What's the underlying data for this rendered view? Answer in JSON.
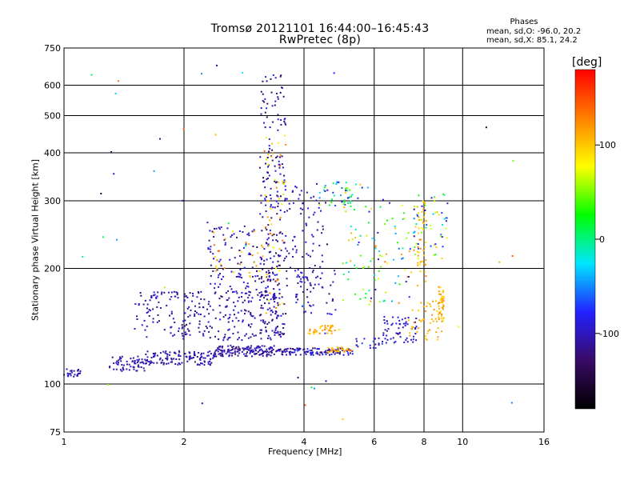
{
  "header": {
    "title_line1": "Tromsø 20121101 16:44:00–16:45:43",
    "title_line2": "RwPretec (8p)"
  },
  "phases_box": {
    "title": "Phases",
    "o_mode": "mean, sd,O: -96.0, 20.2",
    "x_mode": "mean, sd,X: 85.1, 24.2"
  },
  "colorbar": {
    "unit": "[deg]",
    "ticks": [
      {
        "value": 100,
        "label": "100"
      },
      {
        "value": 0,
        "label": "0"
      },
      {
        "value": -100,
        "label": "-100"
      }
    ],
    "range": [
      -180,
      180
    ],
    "colors": [
      "#000000",
      "#3a0a66",
      "#2222ff",
      "#00e6ff",
      "#00ff00",
      "#ffff00",
      "#ff8000",
      "#ff0000"
    ]
  },
  "chart_data": {
    "type": "scatter",
    "xlabel": "Frequency [MHz]",
    "ylabel": "Stationary phase Virtual Height [km]",
    "xscale": "log",
    "yscale": "log",
    "xlim": [
      1,
      16
    ],
    "ylim": [
      75,
      750
    ],
    "xticks": [
      1,
      2,
      4,
      6,
      8,
      10,
      16
    ],
    "xtick_labels": [
      "1",
      "2",
      "4",
      "6",
      "8",
      "10",
      "16"
    ],
    "yticks": [
      75,
      100,
      200,
      300,
      400,
      500,
      600,
      750
    ],
    "ytick_labels": [
      "75",
      "100",
      "200",
      "300",
      "400",
      "500",
      "600",
      "750"
    ],
    "grid": true,
    "clusters": [
      {
        "x": [
          1.0,
          1.1
        ],
        "y": [
          104,
          110
        ],
        "n": 25,
        "phase": [
          -110,
          -90
        ]
      },
      {
        "x": [
          1.3,
          1.6
        ],
        "y": [
          108,
          118
        ],
        "n": 60,
        "phase": [
          -120,
          -90
        ]
      },
      {
        "x": [
          1.6,
          2.4
        ],
        "y": [
          112,
          122
        ],
        "n": 130,
        "phase": [
          -120,
          -90
        ]
      },
      {
        "x": [
          2.4,
          3.4
        ],
        "y": [
          118,
          126
        ],
        "n": 140,
        "phase": [
          -125,
          -90
        ]
      },
      {
        "x": [
          3.4,
          5.3
        ],
        "y": [
          119,
          124
        ],
        "n": 130,
        "phase": [
          -140,
          -70
        ]
      },
      {
        "x": [
          4.6,
          5.3
        ],
        "y": [
          121,
          125
        ],
        "n": 30,
        "phase": [
          80,
          140
        ]
      },
      {
        "x": [
          5.3,
          6.3
        ],
        "y": [
          124,
          132
        ],
        "n": 20,
        "phase": [
          -110,
          -60
        ]
      },
      {
        "x": [
          6.3,
          7.7
        ],
        "y": [
          128,
          150
        ],
        "n": 60,
        "phase": [
          -110,
          -80
        ]
      },
      {
        "x": [
          7.3,
          8.9
        ],
        "y": [
          130,
          165
        ],
        "n": 50,
        "phase": [
          90,
          130
        ]
      },
      {
        "x": [
          8.7,
          9.0
        ],
        "y": [
          145,
          180
        ],
        "n": 40,
        "phase": [
          90,
          130
        ]
      },
      {
        "x": [
          4.1,
          4.9
        ],
        "y": [
          135,
          142
        ],
        "n": 35,
        "phase": [
          90,
          130
        ]
      },
      {
        "x": [
          1.5,
          3.5
        ],
        "y": [
          130,
          175
        ],
        "n": 280,
        "phase": [
          -125,
          -85
        ]
      },
      {
        "x": [
          2.3,
          3.4
        ],
        "y": [
          170,
          260
        ],
        "n": 120,
        "phase": [
          -125,
          -80
        ]
      },
      {
        "x": [
          2.3,
          3.2
        ],
        "y": [
          190,
          250
        ],
        "n": 30,
        "phase": [
          80,
          140
        ]
      },
      {
        "x": [
          3.1,
          3.6
        ],
        "y": [
          130,
          640
        ],
        "n": 230,
        "phase": [
          -140,
          -80
        ]
      },
      {
        "x": [
          3.2,
          3.6
        ],
        "y": [
          150,
          450
        ],
        "n": 50,
        "phase": [
          60,
          140
        ]
      },
      {
        "x": [
          3.6,
          4.5
        ],
        "y": [
          180,
          330
        ],
        "n": 80,
        "phase": [
          -120,
          -80
        ]
      },
      {
        "x": [
          4.3,
          5.3
        ],
        "y": [
          290,
          340
        ],
        "n": 40,
        "phase": [
          -120,
          60
        ]
      },
      {
        "x": [
          3.8,
          4.8
        ],
        "y": [
          150,
          200
        ],
        "n": 50,
        "phase": [
          -120,
          -80
        ]
      },
      {
        "x": [
          5.0,
          6.0
        ],
        "y": [
          160,
          340
        ],
        "n": 50,
        "phase": [
          -100,
          120
        ]
      },
      {
        "x": [
          6.0,
          7.6
        ],
        "y": [
          160,
          310
        ],
        "n": 60,
        "phase": [
          -110,
          130
        ]
      },
      {
        "x": [
          7.5,
          9.2
        ],
        "y": [
          210,
          320
        ],
        "n": 60,
        "phase": [
          -110,
          120
        ]
      },
      {
        "x": [
          7.7,
          8.1
        ],
        "y": [
          180,
          300
        ],
        "n": 40,
        "phase": [
          80,
          130
        ]
      },
      {
        "x": [
          1.1,
          14
        ],
        "y": [
          80,
          700
        ],
        "n": 45,
        "phase": [
          -150,
          150
        ]
      }
    ]
  }
}
